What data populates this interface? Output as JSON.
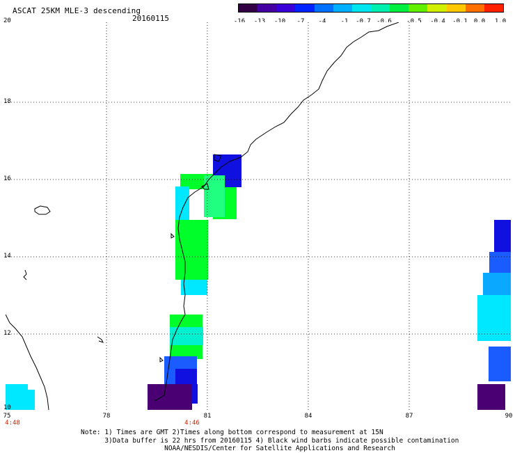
{
  "header": {
    "title": "ASCAT 25KM MLE-3 descending",
    "date": "20160115"
  },
  "colorbar": {
    "labels": [
      "-16",
      "-13",
      "-10",
      "-7",
      "-4",
      "-1",
      "-0.7",
      "-0.6",
      "-0.5",
      "-0.4",
      "-0.1",
      "0.0",
      "1.0"
    ],
    "colors": [
      "#330044",
      "#4400a0",
      "#3a00d8",
      "#0022ff",
      "#0070ff",
      "#00b0ff",
      "#00e6f0",
      "#00f0b0",
      "#00f040",
      "#60f000",
      "#d0f000",
      "#ffc800",
      "#ff7000",
      "#ff2000"
    ]
  },
  "axes": {
    "y_labels": [
      "20",
      "18",
      "16",
      "14",
      "12",
      "10"
    ],
    "x_labels": [
      "75",
      "78",
      "81",
      "84",
      "87",
      "90"
    ],
    "time_labels": [
      "4:48",
      "4:46"
    ]
  },
  "notes": [
    "Note: 1) Times are GMT 2)Times along bottom correspond to measurement at 15N",
    "      3)Data buffer is 22 hrs from 20160115 4) Black wind barbs indicate possible contamination",
    "                     NOAA/NESDIS/Center for Satellite Applications and Research"
  ],
  "palette": {
    "dark_purple": "#4a0073",
    "blue_dark": "#1010e0",
    "blue": "#1a5cff",
    "light_blue": "#0aa8ff",
    "cyan": "#00e8ff",
    "aqua": "#00f0d0",
    "green": "#00ff2a",
    "light_green": "#20ff80"
  }
}
